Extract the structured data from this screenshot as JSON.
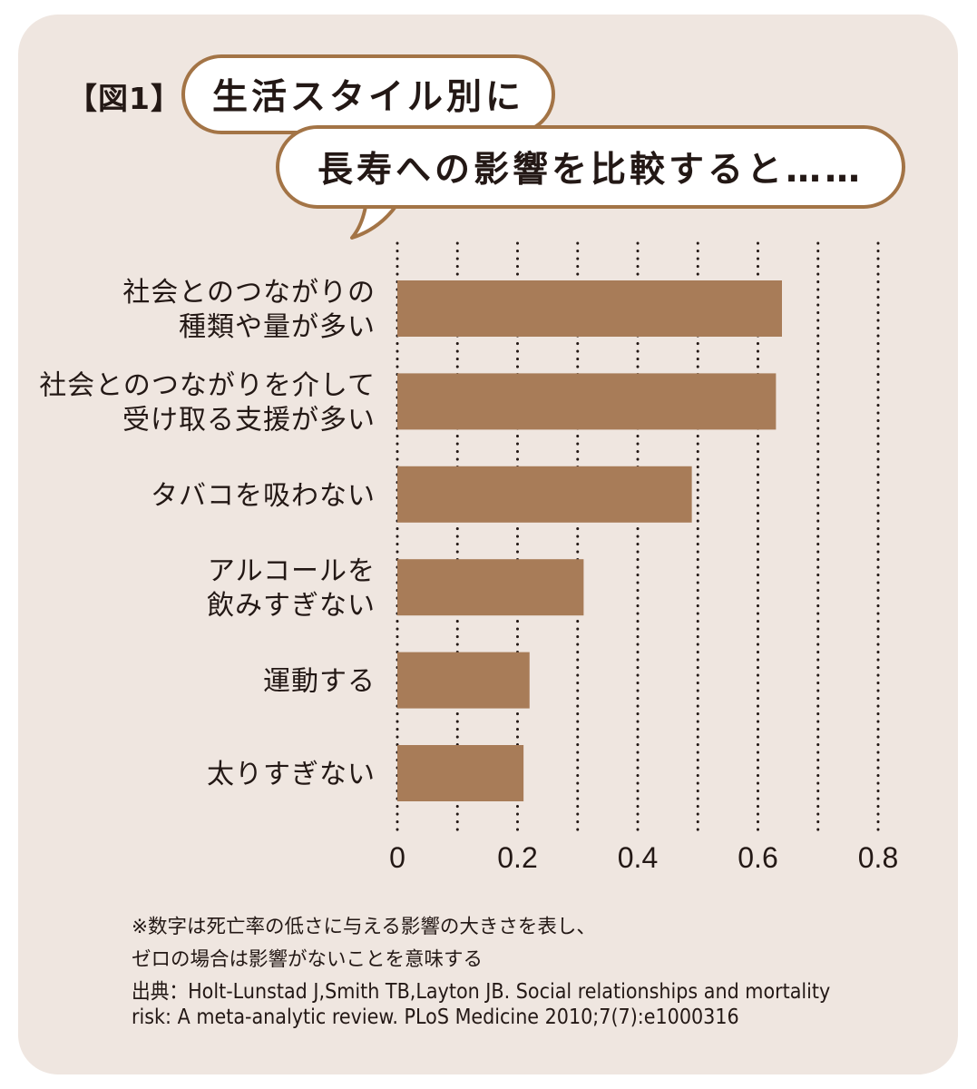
{
  "figure_label": "【図1】",
  "bubble": {
    "line1": "生活スタイル別に",
    "line2": "長寿への影響を比較すると……"
  },
  "chart_data": {
    "type": "bar",
    "orientation": "horizontal",
    "categories": [
      [
        "社会とのつながりの",
        "種類や量が多い"
      ],
      [
        "社会とのつながりを介して",
        "受け取る支援が多い"
      ],
      [
        "タバコを吸わない"
      ],
      [
        "アルコールを",
        "飲みすぎない"
      ],
      [
        "運動する"
      ],
      [
        "太りすぎない"
      ]
    ],
    "values": [
      0.64,
      0.63,
      0.49,
      0.31,
      0.22,
      0.21
    ],
    "xlim": [
      0,
      0.8
    ],
    "ticks": [
      0,
      0.2,
      0.4,
      0.6,
      0.8
    ],
    "tick_labels": [
      "0",
      "0.2",
      "0.4",
      "0.6",
      "0.8"
    ],
    "grid": "dotted vertical",
    "bar_color": "#a87c58"
  },
  "notes": {
    "line1": "※数字は死亡率の低さに与える影響の大きさを表し、",
    "line2": "ゼロの場合は影響がないことを意味する",
    "source1": "出典：Holt-Lunstad J,Smith TB,Layton JB. Social relationships and mortality",
    "source2": "risk: A meta-analytic review. PLoS Medicine 2010;7(7):e1000316"
  },
  "colors": {
    "background": "#efe6e0",
    "bubble_border": "#a37446",
    "bar": "#a87c58",
    "text": "#231815"
  }
}
